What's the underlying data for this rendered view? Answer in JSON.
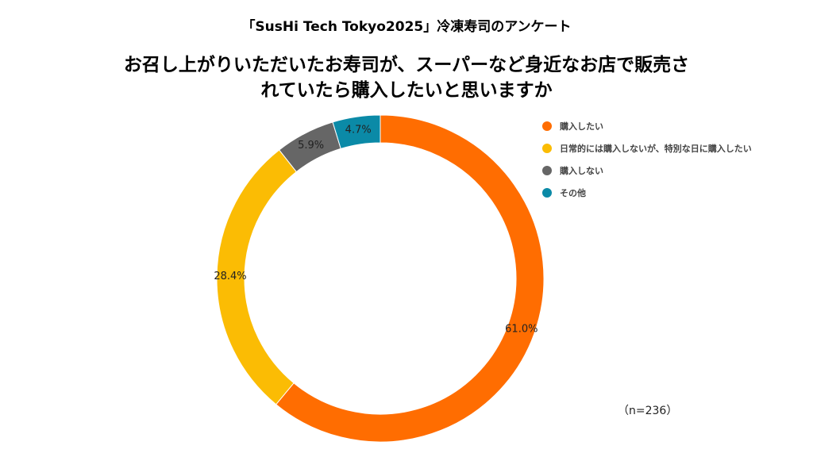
{
  "subtitle": "「SusHi Tech Tokyo2025」冷凍寿司のアンケート",
  "title_lines": [
    "お召し上がりいただいたお寿司が、スーパーなど身近なお店で販売さ",
    "れていたら購入したいと思いますか"
  ],
  "note": "（n=236）",
  "chart_data": {
    "type": "pie",
    "style": "donut",
    "legend_position": "right",
    "slices": [
      {
        "label": "購入したい",
        "value": 61.0,
        "value_label": "61.0%",
        "color": "#FF6D01"
      },
      {
        "label": "日常的には購入しないが、特別な日に購入したい",
        "value": 28.4,
        "value_label": "28.4%",
        "color": "#FBBC04"
      },
      {
        "label": "購入しない",
        "value": 5.9,
        "value_label": "5.9%",
        "color": "#666666"
      },
      {
        "label": "その他",
        "value": 4.7,
        "value_label": "4.7%",
        "color": "#0B8AA7"
      }
    ]
  }
}
